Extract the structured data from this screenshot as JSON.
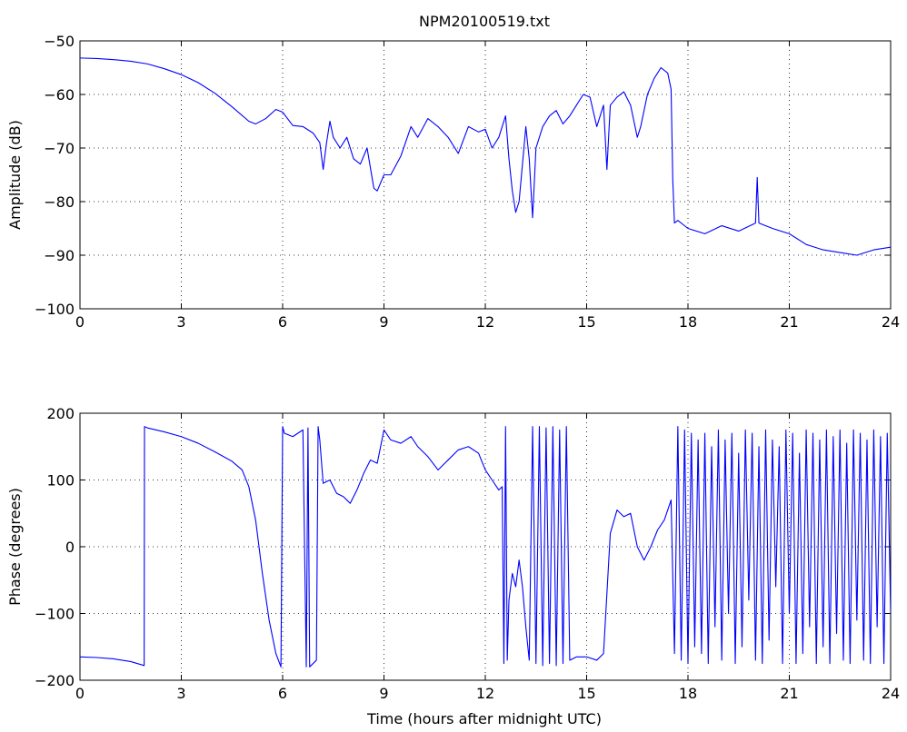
{
  "figure": {
    "title": "NPM20100519.txt",
    "xlabel": "Time (hours after midnight UTC)",
    "line_color": "#0000ff"
  },
  "chart_data": [
    {
      "type": "line",
      "name": "amplitude",
      "ylabel": "Amplitude (dB)",
      "xlim": [
        0,
        24
      ],
      "ylim": [
        -100,
        -50
      ],
      "xticks": [
        0,
        3,
        6,
        9,
        12,
        15,
        18,
        21,
        24
      ],
      "yticks": [
        -100,
        -90,
        -80,
        -70,
        -60,
        -50
      ],
      "ytick_labels": [
        "−100",
        "−90",
        "−80",
        "−70",
        "−60",
        "−50"
      ],
      "grid": true,
      "x": [
        0,
        0.5,
        1,
        1.5,
        2,
        2.5,
        3,
        3.5,
        4,
        4.5,
        5,
        5.2,
        5.5,
        5.8,
        6,
        6.3,
        6.6,
        6.9,
        7.1,
        7.2,
        7.3,
        7.4,
        7.5,
        7.7,
        7.9,
        8.1,
        8.3,
        8.5,
        8.7,
        8.8,
        9.0,
        9.2,
        9.5,
        9.8,
        10.0,
        10.3,
        10.6,
        10.9,
        11.2,
        11.5,
        11.8,
        12.0,
        12.2,
        12.4,
        12.6,
        12.7,
        12.8,
        12.9,
        13.0,
        13.2,
        13.3,
        13.4,
        13.5,
        13.7,
        13.9,
        14.1,
        14.3,
        14.5,
        14.7,
        14.9,
        15.1,
        15.3,
        15.5,
        15.6,
        15.7,
        15.9,
        16.1,
        16.3,
        16.5,
        16.6,
        16.8,
        17.0,
        17.2,
        17.4,
        17.5,
        17.55,
        17.6,
        17.7,
        18.0,
        18.5,
        19.0,
        19.5,
        20.0,
        20.05,
        20.1,
        20.5,
        21.0,
        21.5,
        22.0,
        22.5,
        23.0,
        23.5,
        24.0
      ],
      "values": [
        -53.2,
        -53.3,
        -53.5,
        -53.8,
        -54.3,
        -55.2,
        -56.3,
        -57.8,
        -59.8,
        -62.3,
        -65.0,
        -65.5,
        -64.5,
        -62.8,
        -63.3,
        -65.8,
        -66.0,
        -67.2,
        -69.0,
        -74.0,
        -69.0,
        -65.0,
        -68.0,
        -70.0,
        -68.0,
        -72.0,
        -73.0,
        -70.0,
        -77.5,
        -78.0,
        -75.0,
        -75.0,
        -71.5,
        -66.0,
        -68.0,
        -64.5,
        -66.0,
        -68.0,
        -71.0,
        -66.0,
        -67.0,
        -66.5,
        -70.0,
        -68.0,
        -64.0,
        -72.0,
        -78.0,
        -82.0,
        -80.0,
        -66.0,
        -72.0,
        -83.0,
        -70.0,
        -66.0,
        -64.0,
        -63.0,
        -65.5,
        -64.0,
        -62.0,
        -60.0,
        -60.5,
        -66.0,
        -62.0,
        -74.0,
        -62.0,
        -60.5,
        -59.5,
        -62.0,
        -68.0,
        -66.0,
        -60.0,
        -57.0,
        -55.0,
        -56.0,
        -59.0,
        -76.0,
        -84.0,
        -83.5,
        -85.0,
        -86.0,
        -84.5,
        -85.5,
        -84.0,
        -75.5,
        -84.0,
        -85.0,
        -86.0,
        -88.0,
        -89.0,
        -89.5,
        -90.0,
        -89.0,
        -88.5
      ]
    },
    {
      "type": "line",
      "name": "phase",
      "ylabel": "Phase (degrees)",
      "xlim": [
        0,
        24
      ],
      "ylim": [
        -200,
        200
      ],
      "xticks": [
        0,
        3,
        6,
        9,
        12,
        15,
        18,
        21,
        24
      ],
      "yticks": [
        -200,
        -100,
        0,
        100,
        200
      ],
      "ytick_labels": [
        "−200",
        "−100",
        "0",
        "100",
        "200"
      ],
      "grid": true,
      "x": [
        0,
        0.5,
        1.0,
        1.5,
        1.9,
        1.91,
        2.0,
        2.5,
        3.0,
        3.5,
        4.0,
        4.5,
        4.8,
        5.0,
        5.2,
        5.4,
        5.6,
        5.8,
        5.95,
        6.0,
        6.05,
        6.3,
        6.6,
        6.7,
        6.75,
        6.8,
        7.0,
        7.05,
        7.1,
        7.2,
        7.4,
        7.6,
        7.8,
        8.0,
        8.2,
        8.4,
        8.6,
        8.8,
        9.0,
        9.2,
        9.5,
        9.8,
        10.0,
        10.3,
        10.6,
        10.9,
        11.2,
        11.5,
        11.8,
        12.0,
        12.2,
        12.4,
        12.5,
        12.55,
        12.6,
        12.65,
        12.7,
        12.8,
        12.9,
        13.0,
        13.1,
        13.2,
        13.3,
        13.4,
        13.5,
        13.6,
        13.7,
        13.8,
        13.9,
        14.0,
        14.1,
        14.2,
        14.3,
        14.4,
        14.5,
        14.7,
        15.0,
        15.3,
        15.5,
        15.7,
        15.9,
        16.1,
        16.3,
        16.5,
        16.7,
        16.9,
        17.1,
        17.3,
        17.5,
        17.6,
        17.7,
        17.8,
        17.9,
        18.0,
        18.1,
        18.2,
        18.3,
        18.4,
        18.5,
        18.6,
        18.7,
        18.8,
        18.9,
        19.0,
        19.1,
        19.2,
        19.3,
        19.4,
        19.5,
        19.6,
        19.7,
        19.8,
        19.9,
        20.0,
        20.1,
        20.2,
        20.3,
        20.4,
        20.5,
        20.6,
        20.7,
        20.8,
        20.9,
        21.0,
        21.1,
        21.2,
        21.3,
        21.4,
        21.5,
        21.6,
        21.7,
        21.8,
        21.9,
        22.0,
        22.1,
        22.2,
        22.3,
        22.4,
        22.5,
        22.6,
        22.7,
        22.8,
        22.9,
        23.0,
        23.1,
        23.2,
        23.3,
        23.4,
        23.5,
        23.6,
        23.7,
        23.8,
        23.9,
        24.0
      ],
      "values": [
        -165,
        -166,
        -168,
        -172,
        -178,
        180,
        178,
        172,
        165,
        155,
        142,
        128,
        115,
        90,
        40,
        -40,
        -110,
        -160,
        -180,
        180,
        170,
        165,
        175,
        -180,
        178,
        -180,
        -170,
        180,
        160,
        95,
        100,
        80,
        75,
        65,
        85,
        110,
        130,
        125,
        175,
        160,
        155,
        165,
        150,
        135,
        115,
        130,
        145,
        150,
        140,
        115,
        100,
        85,
        90,
        -175,
        180,
        -170,
        -80,
        -40,
        -60,
        -20,
        -60,
        -120,
        -170,
        180,
        -175,
        180,
        -178,
        178,
        -175,
        180,
        -178,
        175,
        -175,
        180,
        -170,
        -165,
        -165,
        -170,
        -160,
        20,
        55,
        45,
        50,
        0,
        -20,
        0,
        25,
        40,
        70,
        -160,
        180,
        -170,
        175,
        -175,
        170,
        -150,
        160,
        -160,
        170,
        -175,
        150,
        -120,
        175,
        -170,
        160,
        -100,
        170,
        -175,
        140,
        -150,
        175,
        -80,
        170,
        -170,
        150,
        -175,
        175,
        -140,
        160,
        -60,
        150,
        -175,
        175,
        -100,
        170,
        -175,
        140,
        -160,
        175,
        -120,
        170,
        -175,
        160,
        -150,
        175,
        -175,
        165,
        -130,
        175,
        -170,
        155,
        -175,
        175,
        -110,
        170,
        -170,
        160,
        -175,
        175,
        -120,
        165,
        -175,
        170,
        -100
      ]
    }
  ]
}
